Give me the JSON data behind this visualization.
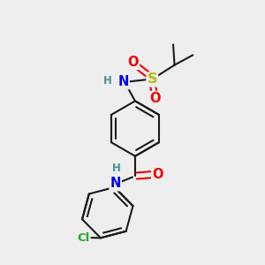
{
  "bg_color": "#eeeeee",
  "bond_color": "#1a1a1a",
  "bond_width": 1.5,
  "colors": {
    "N": "#0000ee",
    "O": "#ee0000",
    "S": "#bbbb00",
    "Cl": "#22aa22",
    "C": "#1a1a1a",
    "H": "#4a9090"
  },
  "font_size": 9.5
}
